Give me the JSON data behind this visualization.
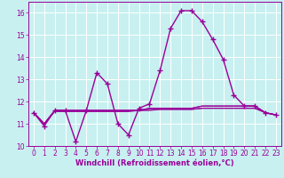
{
  "xlabel": "Windchill (Refroidissement éolien,°C)",
  "background_color": "#c8f0f0",
  "grid_color": "#ffffff",
  "line_color": "#990099",
  "xlim": [
    -0.5,
    23.5
  ],
  "ylim": [
    10.0,
    16.5
  ],
  "yticks": [
    10,
    11,
    12,
    13,
    14,
    15,
    16
  ],
  "xticks": [
    0,
    1,
    2,
    3,
    4,
    5,
    6,
    7,
    8,
    9,
    10,
    11,
    12,
    13,
    14,
    15,
    16,
    17,
    18,
    19,
    20,
    21,
    22,
    23
  ],
  "series_main": [
    11.5,
    10.9,
    11.6,
    11.6,
    10.2,
    11.6,
    13.3,
    12.8,
    11.0,
    10.5,
    11.7,
    11.9,
    13.4,
    15.3,
    16.1,
    16.1,
    15.6,
    14.8,
    13.9,
    12.3,
    11.8,
    11.8,
    11.5,
    11.4
  ],
  "series_flat": [
    [
      11.5,
      11.0,
      11.55,
      11.55,
      11.55,
      11.55,
      11.55,
      11.55,
      11.55,
      11.55,
      11.6,
      11.6,
      11.65,
      11.65,
      11.65,
      11.65,
      11.7,
      11.7,
      11.7,
      11.7,
      11.7,
      11.7,
      11.5,
      11.4
    ],
    [
      11.5,
      11.0,
      11.6,
      11.6,
      11.6,
      11.6,
      11.6,
      11.6,
      11.6,
      11.6,
      11.6,
      11.65,
      11.65,
      11.65,
      11.65,
      11.65,
      11.7,
      11.7,
      11.7,
      11.7,
      11.7,
      11.7,
      11.5,
      11.4
    ],
    [
      11.5,
      11.0,
      11.6,
      11.6,
      11.6,
      11.6,
      11.6,
      11.6,
      11.6,
      11.6,
      11.6,
      11.7,
      11.7,
      11.7,
      11.7,
      11.7,
      11.8,
      11.8,
      11.8,
      11.8,
      11.8,
      11.8,
      11.5,
      11.4
    ],
    [
      11.5,
      11.0,
      11.6,
      11.6,
      11.6,
      11.6,
      11.6,
      11.6,
      11.6,
      11.6,
      11.6,
      11.7,
      11.7,
      11.7,
      11.7,
      11.7,
      11.8,
      11.8,
      11.8,
      11.8,
      11.8,
      11.8,
      11.5,
      11.4
    ]
  ],
  "tick_fontsize": 5.5,
  "xlabel_fontsize": 6.0,
  "linewidth_main": 1.0,
  "linewidth_flat": 0.8,
  "marker": "+",
  "markersize": 4,
  "markeredgewidth": 1.0
}
